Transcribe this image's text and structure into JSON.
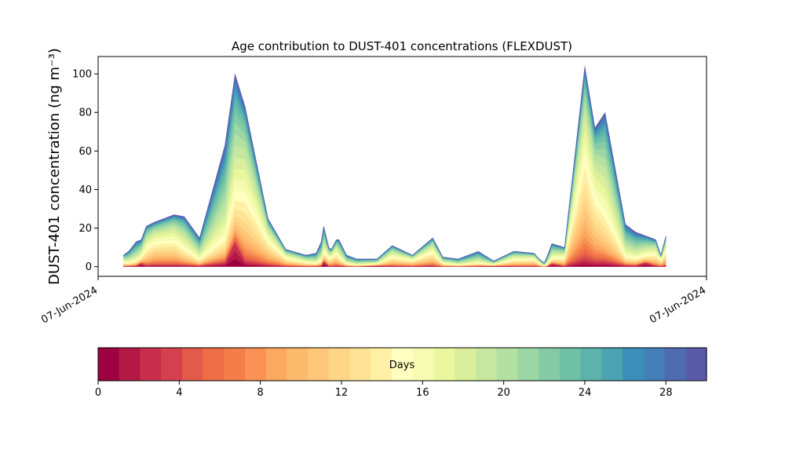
{
  "chart_data": [
    {
      "type": "area",
      "stacked": true,
      "title": "Age contribution to DUST-401 concentrations (FLEXDUST)",
      "ylabel": "DUST-401 concentration (ng m⁻³)",
      "xlabel": "",
      "ylim": [
        -5,
        109
      ],
      "yticks": [
        0,
        20,
        40,
        60,
        80,
        100
      ],
      "xtick_labels": [
        "07-Jun-2024",
        "07-Jun-2024"
      ],
      "grid": false,
      "x": [
        0.05,
        0.06,
        0.075,
        0.085,
        0.095,
        0.11,
        0.15,
        0.17,
        0.2,
        0.25,
        0.27,
        0.29,
        0.335,
        0.37,
        0.41,
        0.43,
        0.44,
        0.445,
        0.455,
        0.46,
        0.47,
        0.475,
        0.49,
        0.51,
        0.55,
        0.58,
        0.62,
        0.66,
        0.68,
        0.71,
        0.75,
        0.78,
        0.82,
        0.86,
        0.87,
        0.875,
        0.88,
        0.885,
        0.895,
        0.92,
        0.96,
        0.98,
        1.0,
        1.04,
        1.06,
        1.08,
        1.1,
        1.11,
        1.12
      ],
      "total": [
        6,
        8,
        13,
        14,
        21,
        23,
        27,
        26,
        15,
        63,
        100,
        83,
        25,
        9,
        6,
        7,
        13,
        21,
        10,
        9,
        14,
        14,
        6,
        4,
        4,
        11,
        6,
        15,
        5,
        4,
        8,
        3,
        8,
        7,
        4,
        3,
        2,
        5,
        12,
        10,
        104,
        72,
        80,
        22,
        18,
        16,
        14,
        6,
        16
      ],
      "age_bins_days": [
        0,
        4,
        8,
        12,
        16,
        20,
        24,
        28,
        30
      ],
      "colorbar": {
        "label": "Days",
        "min": 0,
        "max": 30,
        "ticks": [
          0,
          4,
          8,
          12,
          16,
          20,
          24,
          28
        ],
        "colors": [
          "#9e0142",
          "#b41946",
          "#c82e4a",
          "#d6404e",
          "#e25a49",
          "#ed6e44",
          "#f57d4a",
          "#f99254",
          "#fca85f",
          "#fdba6c",
          "#fec77a",
          "#fed686",
          "#fee394",
          "#fff0a6",
          "#ffffbf",
          "#f6fbb2",
          "#eaf79f",
          "#d9ef9b",
          "#c6e79f",
          "#b3e1a2",
          "#9bd6a4",
          "#84cba5",
          "#6ec1a5",
          "#5db3ab",
          "#4ba3b1",
          "#3c8fb8",
          "#4380b9",
          "#4e6db0",
          "#5a5ba8"
        ]
      }
    }
  ]
}
